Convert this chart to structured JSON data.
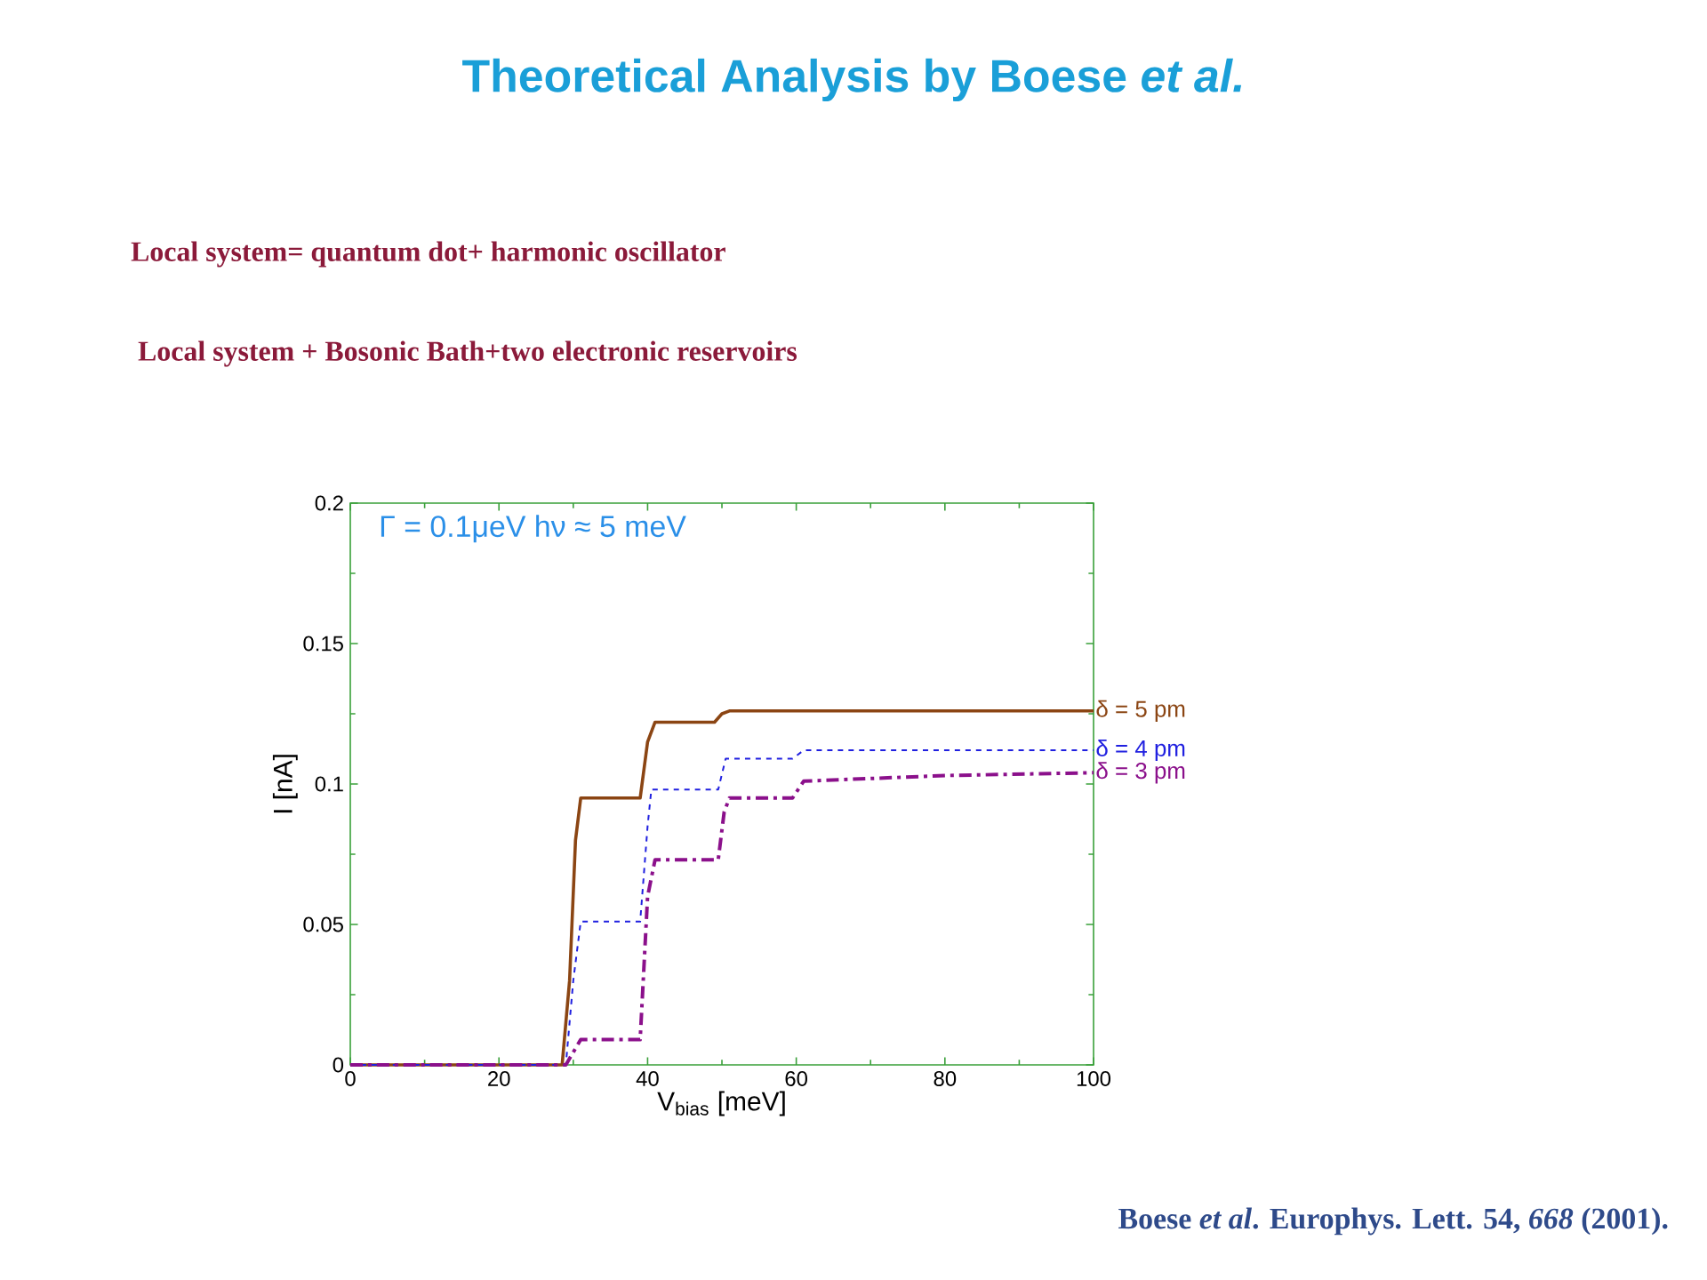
{
  "chart_data": {
    "type": "line",
    "title": "Theoretical Analysis by Boese *et al.*",
    "subtitle": "Local system= quantum dot+ harmonic oscillator",
    "xlabel": "V$_{bias}$ [meV]",
    "ylabel": "I [nA]",
    "annotations": [
      "Local system + Bosonic Bath+two electronic reservoirs",
      "Γ = 0.1μeV  hν ≈ 5 meV",
      "Boese *et al*. Europhys. Lett. 54, *668* (2001)."
    ],
    "xlim": [
      0,
      100
    ],
    "ylim": [
      0,
      0.2
    ],
    "xticks": [
      0,
      20,
      40,
      60,
      80,
      100
    ],
    "yticks": [
      0,
      0.05,
      0.1,
      0.15,
      0.2
    ],
    "grid": false,
    "legend": false,
    "marker": "none",
    "series": [
      {
        "name": "δ = 5 pm",
        "color": "#8b4513",
        "line_style": "solid",
        "x": [
          0,
          28.5,
          29.5,
          30.3,
          31,
          39,
          40,
          41,
          49,
          50,
          51,
          100
        ],
        "values": [
          0,
          0,
          0.03,
          0.08,
          0.095,
          0.095,
          0.115,
          0.122,
          0.122,
          0.125,
          0.126,
          0.126
        ]
      },
      {
        "name": "δ = 4 pm",
        "color": "#2020e0",
        "line_style": "dashed",
        "x": [
          0,
          29,
          30,
          31,
          39,
          40,
          40.5,
          49.5,
          50.5,
          59.5,
          61,
          100
        ],
        "values": [
          0,
          0,
          0.03,
          0.051,
          0.051,
          0.085,
          0.098,
          0.098,
          0.109,
          0.109,
          0.112,
          0.112
        ]
      },
      {
        "name": "δ = 3 pm",
        "color": "#8b108b",
        "line_style": "dashdot",
        "x": [
          0,
          29,
          31,
          39,
          40,
          41,
          49.5,
          50.3,
          51,
          59.5,
          61,
          80,
          100
        ],
        "values": [
          0,
          0,
          0.009,
          0.009,
          0.06,
          0.073,
          0.073,
          0.09,
          0.095,
          0.095,
          0.101,
          0.103,
          0.104
        ]
      }
    ]
  }
}
